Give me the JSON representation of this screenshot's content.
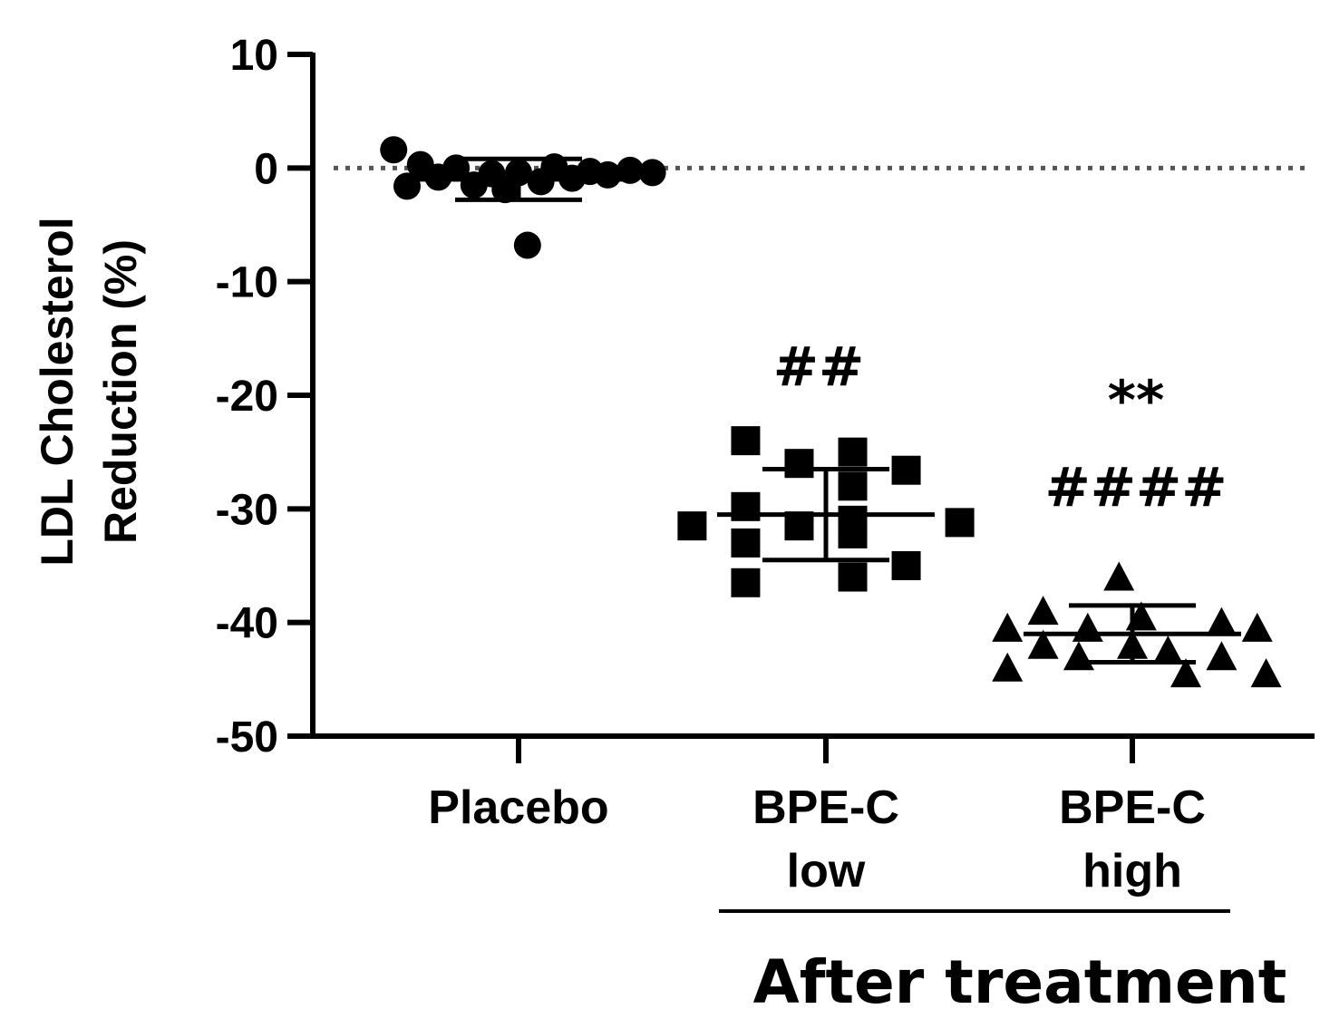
{
  "chart_data": {
    "type": "scatter",
    "ylabel_line1": "LDL Cholesterol",
    "ylabel_line2": "Reduction (%)",
    "ylim": [
      -50,
      10
    ],
    "yticks": [
      "10",
      "0",
      "-10",
      "-20",
      "-30",
      "-40",
      "-50"
    ],
    "reference_line": 0,
    "categories": [
      {
        "lines": [
          "Placebo"
        ]
      },
      {
        "lines": [
          "BPE-C",
          "low"
        ]
      },
      {
        "lines": [
          "BPE-C",
          "high"
        ]
      }
    ],
    "group_title": "After treatment",
    "series": [
      {
        "marker": "circle",
        "mean": -1.0,
        "sd": 1.8,
        "points": [
          {
            "dx": -0.28,
            "y": 1.6
          },
          {
            "dx": -0.25,
            "y": -1.6
          },
          {
            "dx": -0.22,
            "y": 0.3
          },
          {
            "dx": -0.18,
            "y": -0.8
          },
          {
            "dx": -0.14,
            "y": 0.0
          },
          {
            "dx": -0.1,
            "y": -1.5
          },
          {
            "dx": -0.06,
            "y": -0.5
          },
          {
            "dx": -0.03,
            "y": -1.9
          },
          {
            "dx": 0.0,
            "y": -0.4
          },
          {
            "dx": 0.02,
            "y": -6.8
          },
          {
            "dx": 0.05,
            "y": -1.2
          },
          {
            "dx": 0.08,
            "y": 0.1
          },
          {
            "dx": 0.12,
            "y": -0.9
          },
          {
            "dx": 0.16,
            "y": -0.3
          },
          {
            "dx": 0.2,
            "y": -0.6
          },
          {
            "dx": 0.25,
            "y": -0.2
          },
          {
            "dx": 0.3,
            "y": -0.4
          }
        ]
      },
      {
        "marker": "square",
        "mean": -30.5,
        "sd": 4.0,
        "annotations": [
          "##"
        ],
        "points": [
          {
            "dx": -0.3,
            "y": -31.5
          },
          {
            "dx": -0.18,
            "y": -24.0
          },
          {
            "dx": -0.18,
            "y": -29.8
          },
          {
            "dx": -0.18,
            "y": -33.0
          },
          {
            "dx": -0.18,
            "y": -36.5
          },
          {
            "dx": -0.06,
            "y": -31.5
          },
          {
            "dx": -0.06,
            "y": -26.0
          },
          {
            "dx": 0.06,
            "y": -31.0
          },
          {
            "dx": 0.06,
            "y": -28.0
          },
          {
            "dx": 0.06,
            "y": -32.2
          },
          {
            "dx": 0.06,
            "y": -36.0
          },
          {
            "dx": 0.06,
            "y": -25.0
          },
          {
            "dx": 0.18,
            "y": -26.6
          },
          {
            "dx": 0.18,
            "y": -35.0
          },
          {
            "dx": 0.3,
            "y": -31.2
          }
        ]
      },
      {
        "marker": "triangle",
        "mean": -41.0,
        "sd": 2.5,
        "annotations": [
          "**",
          "####"
        ],
        "points": [
          {
            "dx": -0.28,
            "y": -40.5
          },
          {
            "dx": -0.28,
            "y": -44.0
          },
          {
            "dx": -0.2,
            "y": -39.0
          },
          {
            "dx": -0.2,
            "y": -42.0
          },
          {
            "dx": -0.12,
            "y": -43.0
          },
          {
            "dx": -0.1,
            "y": -40.5
          },
          {
            "dx": -0.03,
            "y": -36.0
          },
          {
            "dx": 0.0,
            "y": -42.0
          },
          {
            "dx": 0.02,
            "y": -39.5
          },
          {
            "dx": 0.08,
            "y": -42.5
          },
          {
            "dx": 0.12,
            "y": -44.5
          },
          {
            "dx": 0.2,
            "y": -43.0
          },
          {
            "dx": 0.2,
            "y": -40.0
          },
          {
            "dx": 0.28,
            "y": -40.5
          },
          {
            "dx": 0.3,
            "y": -44.5
          }
        ]
      }
    ]
  }
}
